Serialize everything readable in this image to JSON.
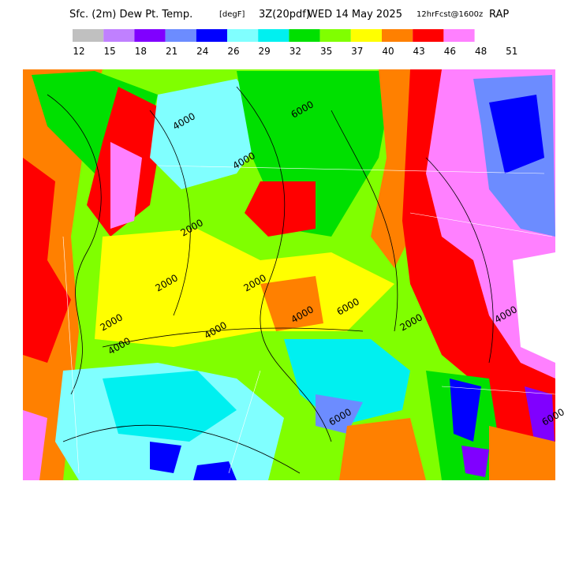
{
  "header": {
    "title": "Sfc. (2m) Dew Pt. Temp.",
    "units": "[degF]",
    "valid": "3Z(20pdf)",
    "date": "WED 14 May 2025",
    "forecast": "12hrFcst@1600z",
    "model": "RAP"
  },
  "colorbar": {
    "colors": [
      "#c0c0c0",
      "#c080ff",
      "#8000ff",
      "#6c8cff",
      "#0000ff",
      "#80ffff",
      "#00f0f0",
      "#00e000",
      "#80ff00",
      "#ffff00",
      "#ff8000",
      "#ff0000",
      "#ff80ff"
    ],
    "labels": [
      12,
      15,
      18,
      21,
      24,
      26,
      29,
      32,
      35,
      37,
      40,
      43,
      46,
      48,
      51
    ]
  },
  "map": {
    "contour_labels": [
      "4000",
      "4000",
      "2000",
      "2000",
      "4000",
      "6000",
      "2000",
      "4000",
      "2000",
      "4000",
      "6000",
      "6000",
      "4000",
      "2000",
      "6000"
    ]
  }
}
